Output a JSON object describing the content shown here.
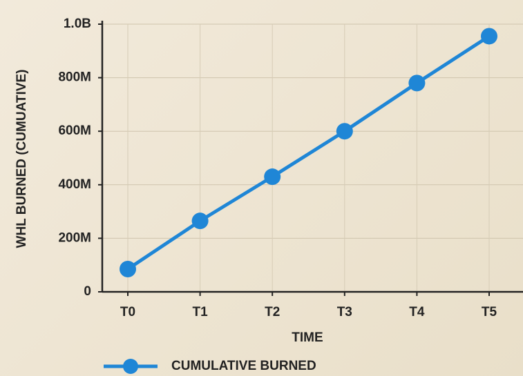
{
  "chart_data": {
    "type": "line",
    "x_label": "TIME",
    "y_label": "WHL BURNED (CUMUATIVE)",
    "categories": [
      "T0",
      "T1",
      "T2",
      "T3",
      "T4",
      "T5"
    ],
    "series": [
      {
        "name": "CUMULATIVE BURNED",
        "color": "#1f86d6",
        "values": [
          85000000,
          265000000,
          430000000,
          600000000,
          780000000,
          955000000
        ]
      }
    ],
    "ylim": [
      0,
      1000000000
    ],
    "yticks": [
      0,
      {
        "value": 200000000,
        "label": "200M"
      },
      {
        "value": 400000000,
        "label": "400M"
      },
      {
        "value": 600000000,
        "label": "600M"
      },
      {
        "value": 800000000,
        "label": "800M"
      },
      {
        "value": 1000000000,
        "label": "1.0B"
      }
    ],
    "grid": true,
    "legend": "bottom"
  }
}
